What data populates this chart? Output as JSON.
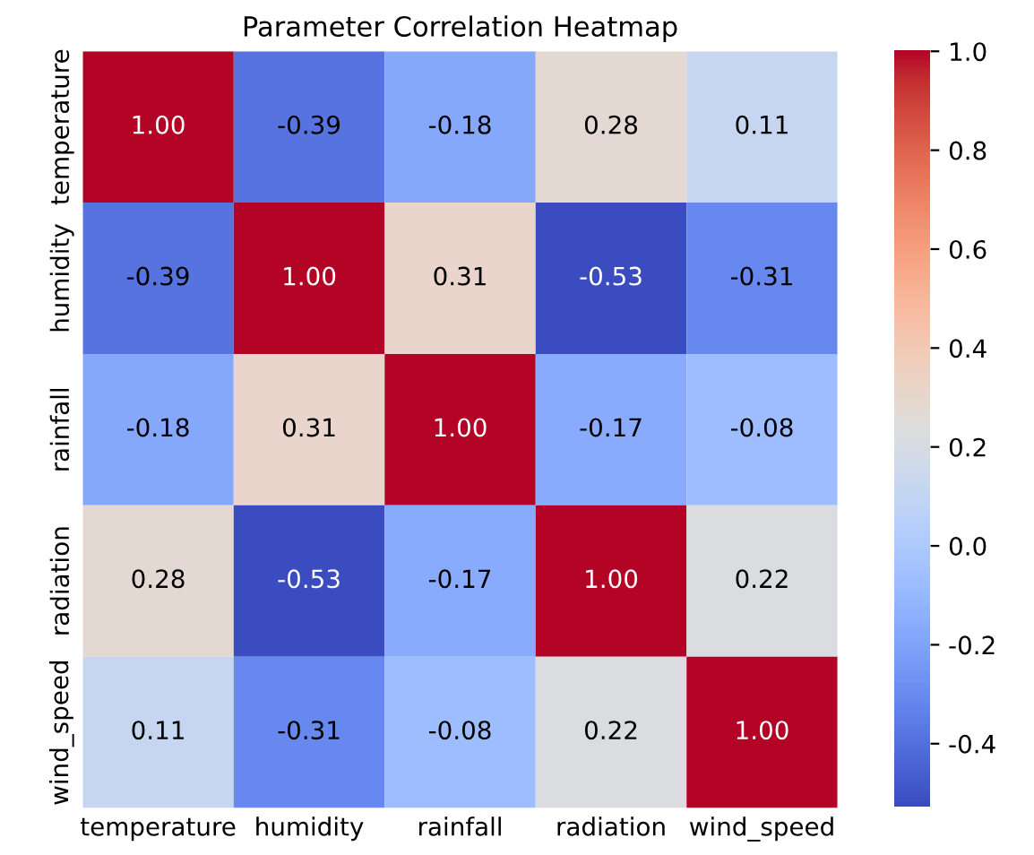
{
  "chart_data": {
    "type": "heatmap",
    "title": "Parameter Correlation Heatmap",
    "categories": [
      "temperature",
      "humidity",
      "rainfall",
      "radiation",
      "wind_speed"
    ],
    "y_categories": [
      "temperature",
      "humidity",
      "rainfall",
      "radiation",
      "wind_speed"
    ],
    "cells": [
      [
        1.0,
        -0.39,
        -0.18,
        0.28,
        0.11
      ],
      [
        -0.39,
        1.0,
        0.31,
        -0.53,
        -0.31
      ],
      [
        -0.18,
        0.31,
        1.0,
        -0.17,
        -0.08
      ],
      [
        0.28,
        -0.53,
        -0.17,
        1.0,
        0.22
      ],
      [
        0.11,
        -0.31,
        -0.08,
        0.22,
        1.0
      ]
    ],
    "cell_labels": [
      [
        "1.00",
        "-0.39",
        "-0.18",
        "0.28",
        "0.11"
      ],
      [
        "-0.39",
        "1.00",
        "0.31",
        "-0.53",
        "-0.31"
      ],
      [
        "-0.18",
        "0.31",
        "1.00",
        "-0.17",
        "-0.08"
      ],
      [
        "0.28",
        "-0.53",
        "-0.17",
        "1.00",
        "0.22"
      ],
      [
        "0.11",
        "-0.31",
        "-0.08",
        "0.22",
        "1.00"
      ]
    ],
    "clim": [
      -0.53,
      1.0
    ],
    "cticks": [
      {
        "value": -0.4,
        "label": "-0.4"
      },
      {
        "value": -0.2,
        "label": "-0.2"
      },
      {
        "value": 0.0,
        "label": "0.0"
      },
      {
        "value": 0.2,
        "label": "0.2"
      },
      {
        "value": 0.4,
        "label": "0.4"
      },
      {
        "value": 0.6,
        "label": "0.6"
      },
      {
        "value": 0.8,
        "label": "0.8"
      },
      {
        "value": 1.0,
        "label": "1.0"
      }
    ]
  }
}
